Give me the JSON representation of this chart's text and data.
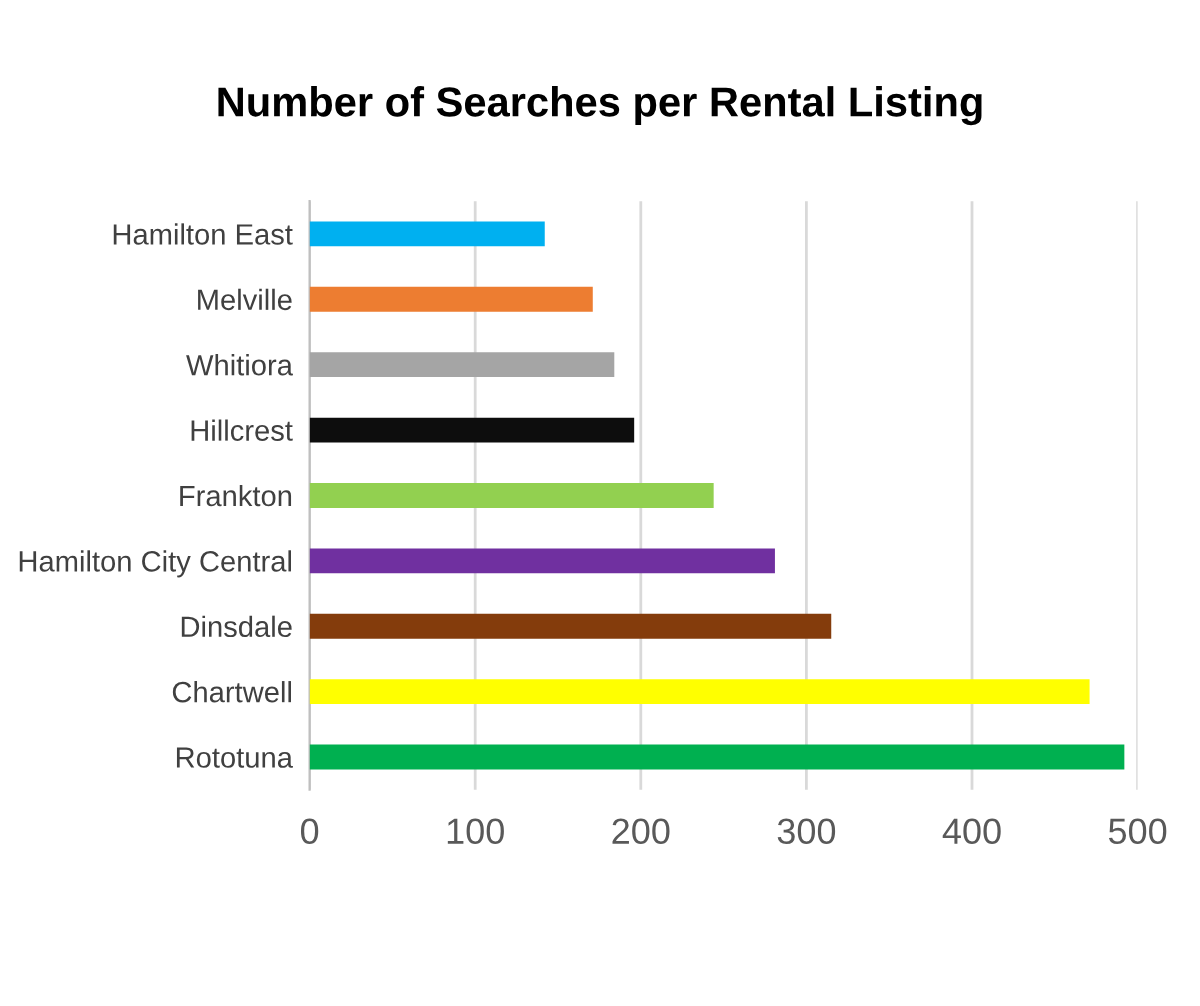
{
  "chart_data": {
    "type": "bar",
    "orientation": "horizontal",
    "title": "Number of Searches per Rental Listing",
    "categories": [
      "Hamilton East",
      "Melville",
      "Whitiora",
      "Hillcrest",
      "Frankton",
      "Hamilton City Central",
      "Dinsdale",
      "Chartwell",
      "Rototuna"
    ],
    "values": [
      142,
      171,
      184,
      196,
      244,
      281,
      315,
      471,
      492
    ],
    "colors": [
      "#00b0f0",
      "#ed7d31",
      "#a5a5a5",
      "#0d0d0d",
      "#92d050",
      "#7030a0",
      "#843c0c",
      "#ffff00",
      "#00b050"
    ],
    "xlim": [
      0,
      500
    ],
    "xticks": [
      0,
      100,
      200,
      300,
      400,
      500
    ],
    "grid": "x"
  }
}
